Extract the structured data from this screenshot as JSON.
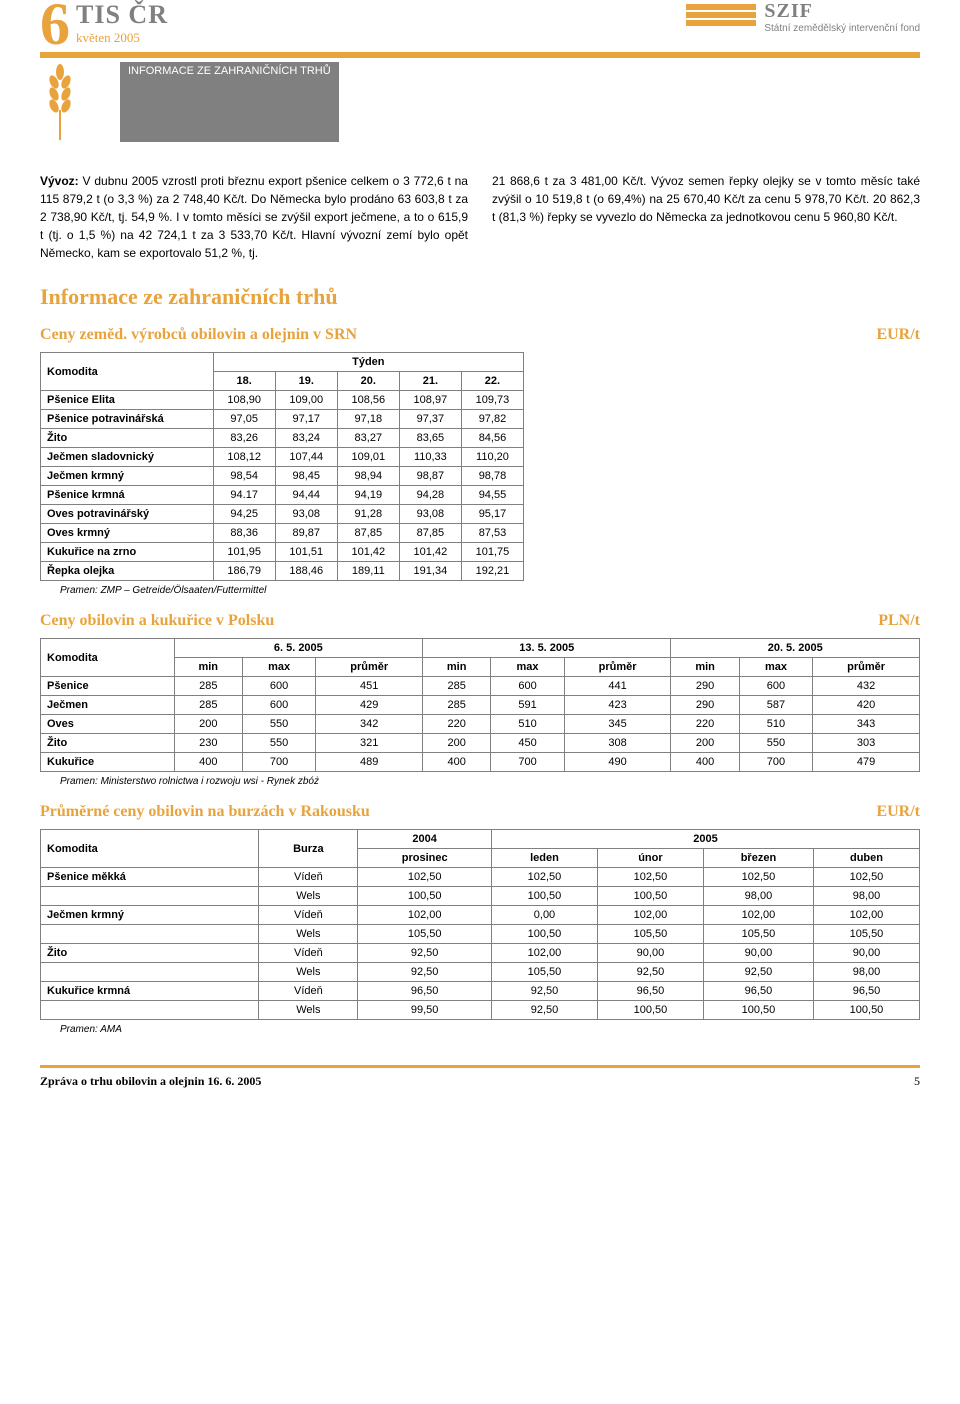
{
  "header": {
    "issue_number": "6",
    "tis_label": "TIS ČR",
    "date": "květen 2005",
    "section_title": "INFORMACE ZE ZAHRANIČNÍCH TRHŮ",
    "szif_title": "SZIF",
    "szif_subtitle": "Státní zemědělský intervenční fond"
  },
  "body": {
    "col1": "Vývoz: V dubnu 2005 vzrostl proti březnu export pšenice celkem o 3 772,6 t na 115 879,2 t (o 3,3 %) za 2 748,40 Kč/t. Do Německa bylo prodáno 63 603,8 t za 2 738,90 Kč/t, tj. 54,9 %. I v tomto měsíci se zvýšil export ječmene, a to o 615,9 t (tj. o 1,5 %) na 42 724,1 t za 3 533,70 Kč/t. Hlavní vývozní zemí bylo opět Německo, kam se exportovalo 51,2 %, tj.",
    "col1_bold": "Vývoz:",
    "col2": "21 868,6 t za 3 481,00 Kč/t. Vývoz semen řepky olejky se v tomto měsíc také zvýšil o 10 519,8 t (o 69,4%) na 25 670,40 Kč/t za cenu 5 978,70 Kč/t. 20 862,3 t (81,3 %) řepky se vyvezlo do Německa za jednotkovou cenu 5 960,80 Kč/t."
  },
  "section_main": "Informace ze zahraničních trhů",
  "srn": {
    "title": "Ceny zeměd. výrobců obilovin a olejnin v SRN",
    "unit": "EUR/t",
    "header_komodita": "Komodita",
    "header_tyden": "Týden",
    "weeks": [
      "18.",
      "19.",
      "20.",
      "21.",
      "22."
    ],
    "rows": [
      {
        "k": "Pšenice Elita",
        "v": [
          "108,90",
          "109,00",
          "108,56",
          "108,97",
          "109,73"
        ]
      },
      {
        "k": "Pšenice potravinářská",
        "v": [
          "97,05",
          "97,17",
          "97,18",
          "97,37",
          "97,82"
        ]
      },
      {
        "k": "Žito",
        "v": [
          "83,26",
          "83,24",
          "83,27",
          "83,65",
          "84,56"
        ]
      },
      {
        "k": "Ječmen sladovnický",
        "v": [
          "108,12",
          "107,44",
          "109,01",
          "110,33",
          "110,20"
        ]
      },
      {
        "k": "Ječmen krmný",
        "v": [
          "98,54",
          "98,45",
          "98,94",
          "98,87",
          "98,78"
        ]
      },
      {
        "k": "Pšenice krmná",
        "v": [
          "94.17",
          "94,44",
          "94,19",
          "94,28",
          "94,55"
        ]
      },
      {
        "k": "Oves potravinářský",
        "v": [
          "94,25",
          "93,08",
          "91,28",
          "93,08",
          "95,17"
        ]
      },
      {
        "k": "Oves krmný",
        "v": [
          "88,36",
          "89,87",
          "87,85",
          "87,85",
          "87,53"
        ]
      },
      {
        "k": "Kukuřice na zrno",
        "v": [
          "101,95",
          "101,51",
          "101,42",
          "101,42",
          "101,75"
        ]
      },
      {
        "k": "Řepka olejka",
        "v": [
          "186,79",
          "188,46",
          "189,11",
          "191,34",
          "192,21"
        ]
      }
    ],
    "source": "Pramen: ZMP – Getreide/Ölsaaten/Futtermittel"
  },
  "polsko": {
    "title": "Ceny obilovin a kukuřice v Polsku",
    "unit": "PLN/t",
    "header_komodita": "Komodita",
    "dates": [
      "6. 5. 2005",
      "13. 5. 2005",
      "20. 5. 2005"
    ],
    "subheaders": [
      "min",
      "max",
      "průměr"
    ],
    "rows": [
      {
        "k": "Pšenice",
        "v": [
          "285",
          "600",
          "451",
          "285",
          "600",
          "441",
          "290",
          "600",
          "432"
        ]
      },
      {
        "k": "Ječmen",
        "v": [
          "285",
          "600",
          "429",
          "285",
          "591",
          "423",
          "290",
          "587",
          "420"
        ]
      },
      {
        "k": "Oves",
        "v": [
          "200",
          "550",
          "342",
          "220",
          "510",
          "345",
          "220",
          "510",
          "343"
        ]
      },
      {
        "k": "Žito",
        "v": [
          "230",
          "550",
          "321",
          "200",
          "450",
          "308",
          "200",
          "550",
          "303"
        ]
      },
      {
        "k": "Kukuřice",
        "v": [
          "400",
          "700",
          "489",
          "400",
          "700",
          "490",
          "400",
          "700",
          "479"
        ]
      }
    ],
    "source": "Pramen: Ministerstwo rolnictwa i rozwoju wsi - Rynek zbóż"
  },
  "rakousko": {
    "title": "Průměrné ceny obilovin na burzách v Rakousku",
    "unit": "EUR/t",
    "header_komodita": "Komodita",
    "header_burza": "Burza",
    "year1": "2004",
    "year2": "2005",
    "months": [
      "prosinec",
      "leden",
      "únor",
      "březen",
      "duben"
    ],
    "rows": [
      {
        "k": "Pšenice měkká",
        "b": "Vídeň",
        "v": [
          "102,50",
          "102,50",
          "102,50",
          "102,50",
          "102,50"
        ]
      },
      {
        "k": "",
        "b": "Wels",
        "v": [
          "100,50",
          "100,50",
          "100,50",
          "98,00",
          "98,00"
        ]
      },
      {
        "k": "Ječmen krmný",
        "b": "Vídeň",
        "v": [
          "102,00",
          "0,00",
          "102,00",
          "102,00",
          "102,00"
        ]
      },
      {
        "k": "",
        "b": "Wels",
        "v": [
          "105,50",
          "100,50",
          "105,50",
          "105,50",
          "105,50"
        ]
      },
      {
        "k": "Žito",
        "b": "Vídeň",
        "v": [
          "92,50",
          "102,00",
          "90,00",
          "90,00",
          "90,00"
        ]
      },
      {
        "k": "",
        "b": "Wels",
        "v": [
          "92,50",
          "105,50",
          "92,50",
          "92,50",
          "98,00"
        ]
      },
      {
        "k": "Kukuřice krmná",
        "b": "Vídeň",
        "v": [
          "96,50",
          "92,50",
          "96,50",
          "96,50",
          "96,50"
        ]
      },
      {
        "k": "",
        "b": "Wels",
        "v": [
          "99,50",
          "92,50",
          "100,50",
          "100,50",
          "100,50"
        ]
      }
    ],
    "source": "Pramen: AMA"
  },
  "footer": {
    "title": "Zpráva o trhu obilovin a olejnin 16. 6. 2005",
    "page": "5"
  },
  "colors": {
    "accent": "#e8a33d",
    "gray": "#808080"
  }
}
